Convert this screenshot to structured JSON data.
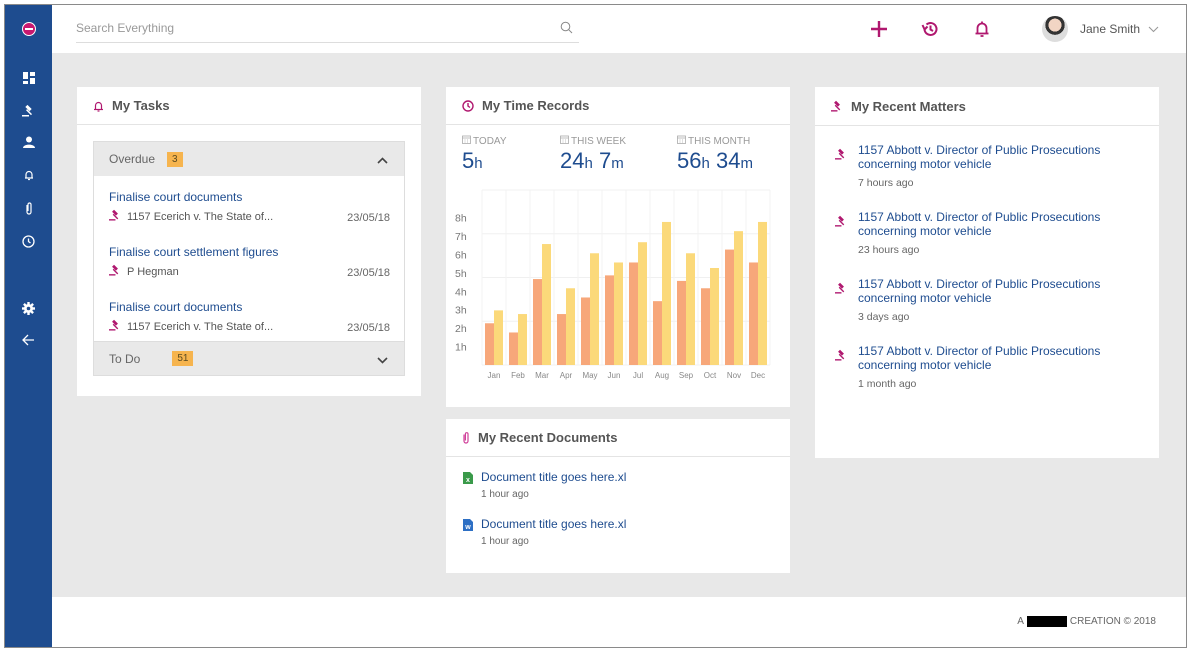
{
  "colors": {
    "brand": "#1e4c8f",
    "accent": "#b0186f",
    "badge": "#f6b44e",
    "bar_primary": "#f7a77a",
    "bar_secondary": "#fbd97a"
  },
  "sidebar": {
    "logo": "app-logo",
    "items": [
      {
        "name": "dashboard",
        "icon": "dashboard-icon"
      },
      {
        "name": "matters",
        "icon": "gavel-icon"
      },
      {
        "name": "contacts",
        "icon": "person-icon"
      },
      {
        "name": "tasks",
        "icon": "bell-icon"
      },
      {
        "name": "documents",
        "icon": "paperclip-icon"
      },
      {
        "name": "time",
        "icon": "clock-icon"
      },
      {
        "name": "settings",
        "icon": "gear-icon"
      },
      {
        "name": "collapse",
        "icon": "arrow-left-icon"
      }
    ]
  },
  "topbar": {
    "search_placeholder": "Search Everything",
    "user_name": "Jane Smith"
  },
  "tasks": {
    "title": "My Tasks",
    "overdue": {
      "label": "Overdue",
      "count": "3",
      "items": [
        {
          "title": "Finalise court documents",
          "matter": "1157  Ecerich v. The State of...",
          "date": "23/05/18"
        },
        {
          "title": "Finalise court settlement figures",
          "matter": "P Hegman",
          "date": "23/05/18"
        },
        {
          "title": "Finalise court documents",
          "matter": "1157  Ecerich v. The State of...",
          "date": "23/05/18"
        }
      ]
    },
    "todo": {
      "label": "To Do",
      "count": "51"
    }
  },
  "time_records": {
    "title": "My Time Records",
    "today": {
      "label": "TODAY",
      "hours": "5",
      "hunit": "h"
    },
    "week": {
      "label": "THIS WEEK",
      "hours": "24",
      "hunit": "h",
      "minutes": "7",
      "munit": "m"
    },
    "month": {
      "label": "THIS MONTH",
      "hours": "56",
      "hunit": "h",
      "minutes": "34",
      "munit": "m"
    }
  },
  "chart_data": {
    "type": "bar",
    "title": "",
    "xlabel": "",
    "ylabel": "",
    "categories": [
      "Jan",
      "Feb",
      "Mar",
      "Apr",
      "May",
      "Jun",
      "Jul",
      "Aug",
      "Sep",
      "Oct",
      "Nov",
      "Dec"
    ],
    "yticks": [
      "1h",
      "2h",
      "3h",
      "4h",
      "5h",
      "6h",
      "7h",
      "8h"
    ],
    "ylim": [
      0,
      9.5
    ],
    "grid": true,
    "legend": "none",
    "series": [
      {
        "name": "series-1",
        "values": [
          2.7,
          2.2,
          5.1,
          3.2,
          4.1,
          5.3,
          6.0,
          3.9,
          5.0,
          4.6,
          6.7,
          6.0
        ]
      },
      {
        "name": "series-2",
        "values": [
          3.4,
          3.2,
          7.0,
          4.6,
          6.5,
          6.0,
          7.1,
          8.2,
          6.5,
          5.7,
          7.7,
          8.2
        ]
      }
    ]
  },
  "documents": {
    "title": "My Recent Documents",
    "items": [
      {
        "title": "Document title goes here.xl",
        "time": "1 hour ago",
        "icon": "excel-file-icon"
      },
      {
        "title": "Document title goes here.xl",
        "time": "1 hour ago",
        "icon": "word-file-icon"
      }
    ]
  },
  "matters": {
    "title": "My Recent Matters",
    "items": [
      {
        "title": "1157 Abbott v. Director of Public Prosecutions concerning motor vehicle",
        "time": "7 hours ago"
      },
      {
        "title": "1157 Abbott v. Director of Public Prosecutions concerning motor vehicle",
        "time": "23 hours ago"
      },
      {
        "title": "1157 Abbott v. Director of Public Prosecutions concerning motor vehicle",
        "time": "3 days ago"
      },
      {
        "title": "1157 Abbott v. Director of Public Prosecutions concerning motor vehicle",
        "time": "1 month ago"
      }
    ]
  },
  "footer": {
    "prefix": "A",
    "suffix": "CREATION © 2018"
  }
}
